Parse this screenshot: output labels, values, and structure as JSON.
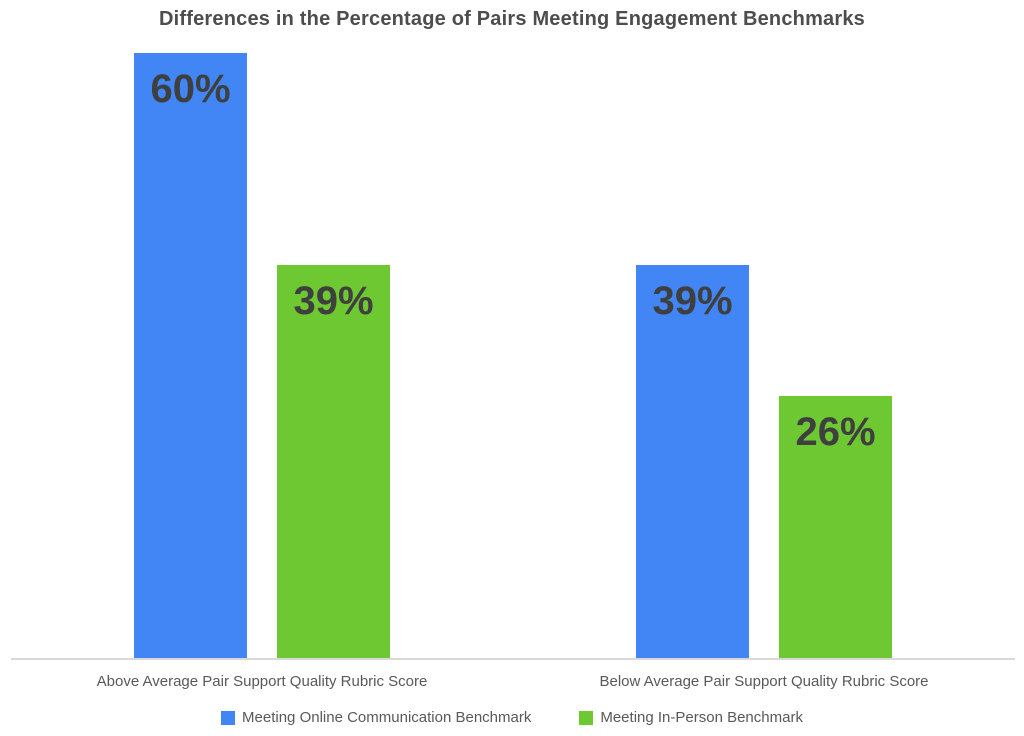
{
  "page": {
    "background_color": "#FFFFFF"
  },
  "chart_data": {
    "type": "bar",
    "title": "Differences in the Percentage of Pairs Meeting Engagement Benchmarks",
    "categories": [
      "Above Average Pair Support Quality Rubric Score",
      "Below Average Pair Support Quality Rubric Score"
    ],
    "series": [
      {
        "name": "Meeting Online Communication Benchmark",
        "color": "#4285F4",
        "values": [
          60,
          39
        ]
      },
      {
        "name": "Meeting In-Person Benchmark",
        "color": "#6DC832",
        "values": [
          39,
          26
        ]
      }
    ],
    "data_labels": [
      [
        "60%",
        "39%"
      ],
      [
        "39%",
        "26%"
      ]
    ],
    "value_suffix": "%",
    "ylim": [
      0,
      60
    ],
    "grid": false,
    "y_axis_visible": false,
    "legend_position": "bottom",
    "axis_line_color": "#D9D9D9",
    "title_color": "#4D4D4D",
    "data_label_color": "#3F3F3F",
    "category_label_color": "#595959",
    "legend_text_color": "#595959"
  }
}
